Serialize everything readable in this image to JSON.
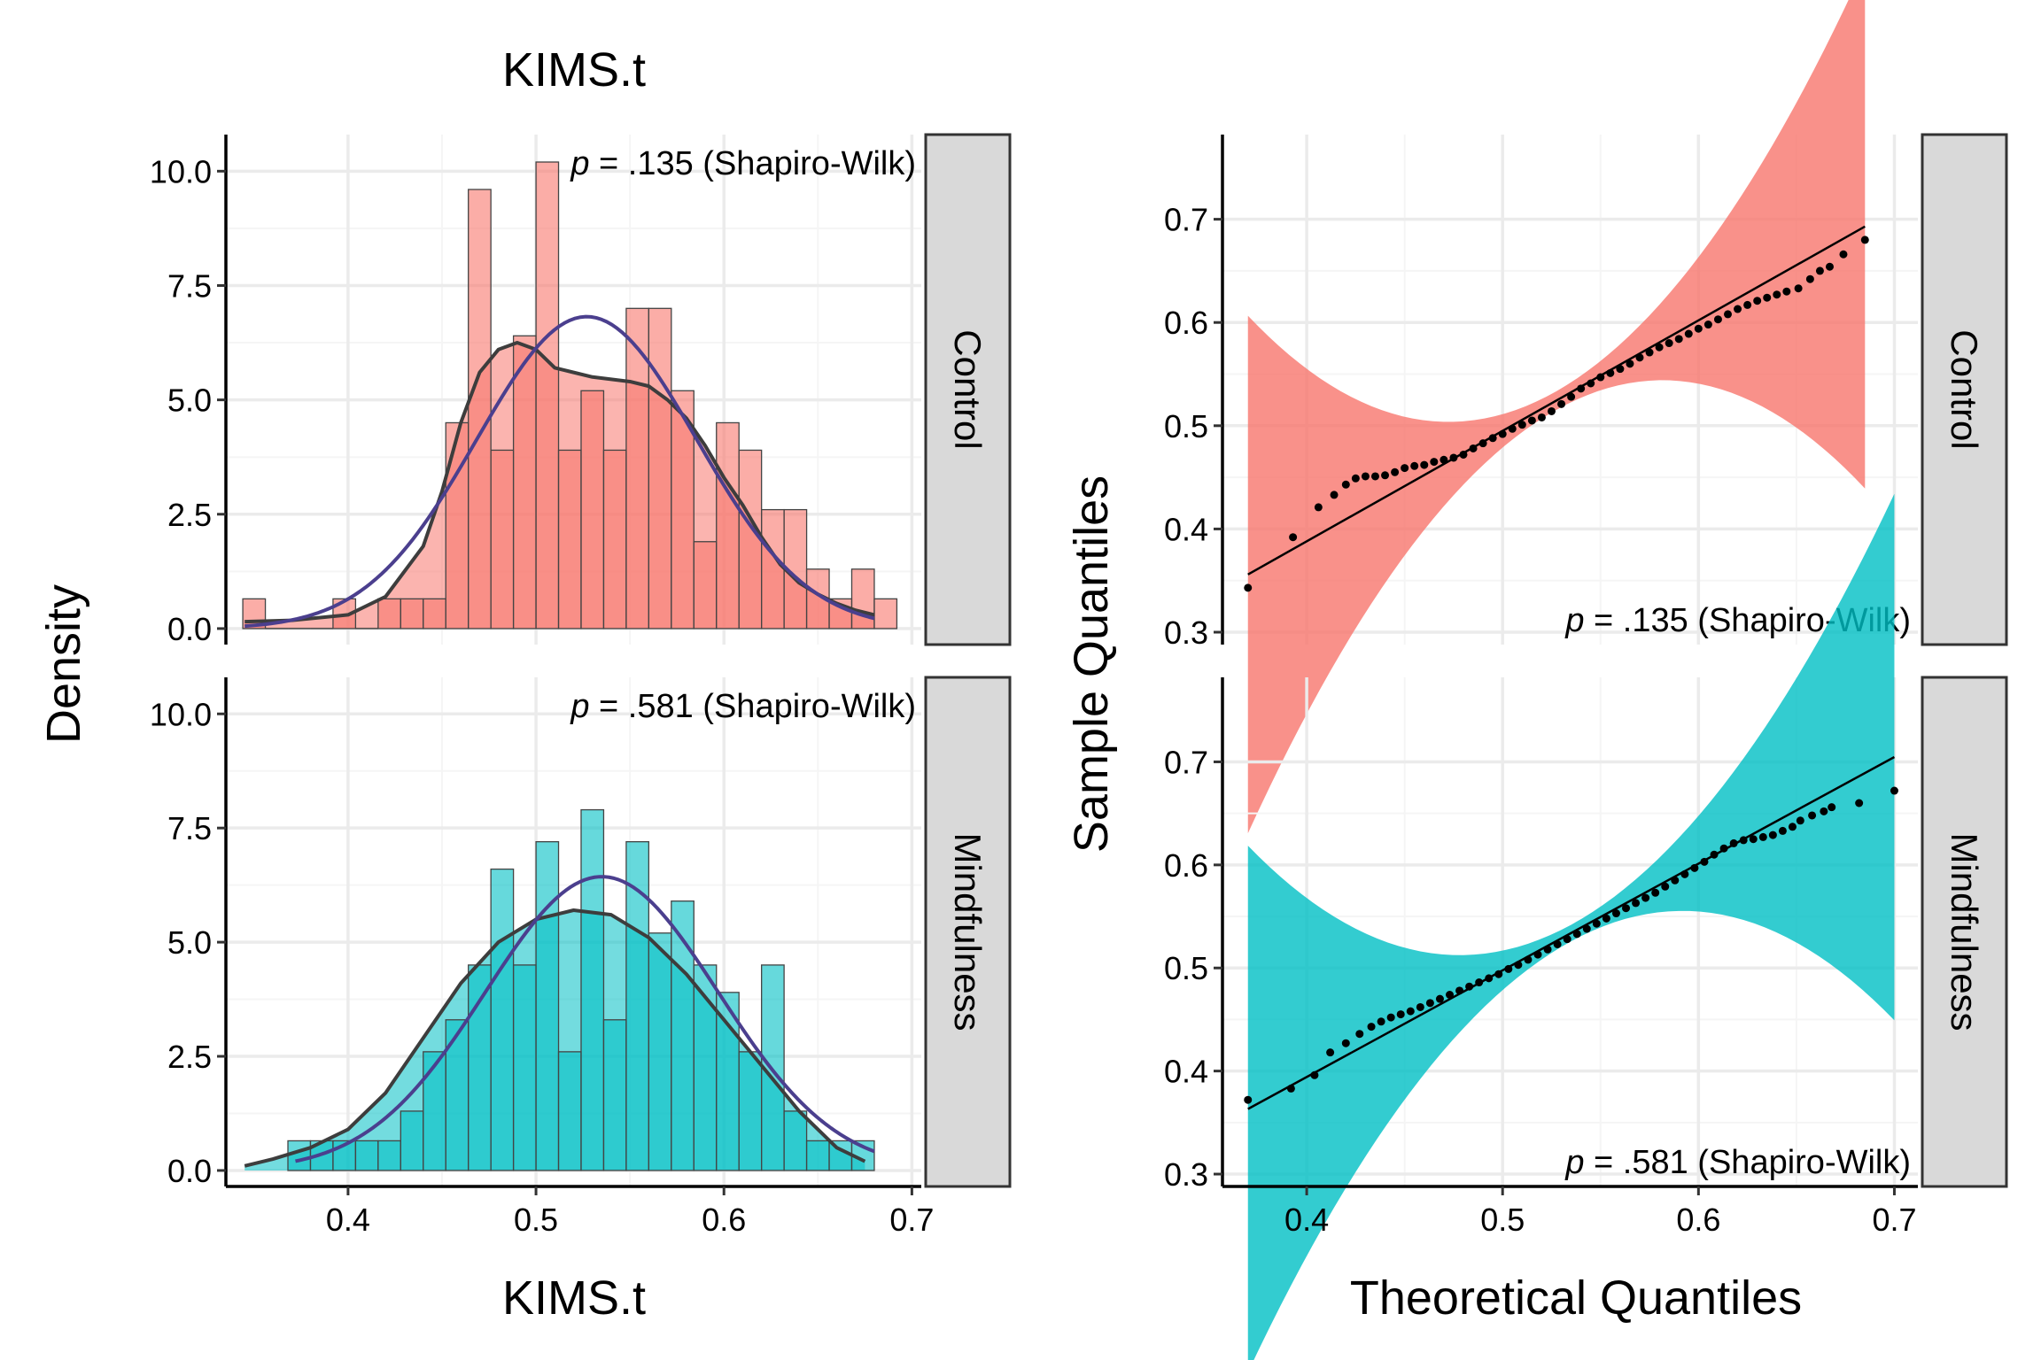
{
  "chart_data": [
    {
      "panel": "left",
      "type": "histogram",
      "title": "KIMS.t",
      "xlabel": "KIMS.t",
      "ylabel": "Density",
      "xlim": [
        0.335,
        0.705
      ],
      "ylim": [
        -0.35,
        10.8
      ],
      "x_ticks": [
        {
          "v": 0.4,
          "label": "0.4"
        },
        {
          "v": 0.5,
          "label": "0.5"
        },
        {
          "v": 0.6,
          "label": "0.6"
        },
        {
          "v": 0.7,
          "label": "0.7"
        }
      ],
      "y_ticks": [
        {
          "v": 0,
          "label": "0.0"
        },
        {
          "v": 2.5,
          "label": "2.5"
        },
        {
          "v": 5,
          "label": "5.0"
        },
        {
          "v": 7.5,
          "label": "7.5"
        },
        {
          "v": 10,
          "label": "10.0"
        }
      ],
      "grid": true,
      "bin_width": 0.012,
      "legend": "none",
      "facets": [
        {
          "strip": "Control",
          "fill": "#F8766D",
          "annotation": {
            "p_symbol": "p",
            "text": " = .135 (Shapiro-Wilk)"
          },
          "bins": [
            {
              "x0": 0.344,
              "h": 0.65
            },
            {
              "x0": 0.356,
              "h": 0.0
            },
            {
              "x0": 0.368,
              "h": 0.0
            },
            {
              "x0": 0.38,
              "h": 0.0
            },
            {
              "x0": 0.392,
              "h": 0.65
            },
            {
              "x0": 0.404,
              "h": 0.0
            },
            {
              "x0": 0.416,
              "h": 0.65
            },
            {
              "x0": 0.428,
              "h": 0.65
            },
            {
              "x0": 0.44,
              "h": 0.65
            },
            {
              "x0": 0.452,
              "h": 4.5
            },
            {
              "x0": 0.464,
              "h": 9.6
            },
            {
              "x0": 0.476,
              "h": 3.9
            },
            {
              "x0": 0.488,
              "h": 6.4
            },
            {
              "x0": 0.5,
              "h": 10.2
            },
            {
              "x0": 0.512,
              "h": 3.9
            },
            {
              "x0": 0.524,
              "h": 5.2
            },
            {
              "x0": 0.536,
              "h": 3.9
            },
            {
              "x0": 0.548,
              "h": 7.0
            },
            {
              "x0": 0.56,
              "h": 7.0
            },
            {
              "x0": 0.572,
              "h": 5.2
            },
            {
              "x0": 0.584,
              "h": 1.9
            },
            {
              "x0": 0.596,
              "h": 4.5
            },
            {
              "x0": 0.608,
              "h": 3.9
            },
            {
              "x0": 0.62,
              "h": 2.6
            },
            {
              "x0": 0.632,
              "h": 2.6
            },
            {
              "x0": 0.644,
              "h": 1.3
            },
            {
              "x0": 0.656,
              "h": 0.65
            },
            {
              "x0": 0.668,
              "h": 1.3
            },
            {
              "x0": 0.68,
              "h": 0.65
            }
          ],
          "density_curve": [
            [
              0.345,
              0.15
            ],
            [
              0.37,
              0.18
            ],
            [
              0.4,
              0.3
            ],
            [
              0.42,
              0.7
            ],
            [
              0.44,
              1.8
            ],
            [
              0.45,
              3.0
            ],
            [
              0.46,
              4.5
            ],
            [
              0.47,
              5.6
            ],
            [
              0.48,
              6.1
            ],
            [
              0.49,
              6.25
            ],
            [
              0.5,
              6.1
            ],
            [
              0.51,
              5.7
            ],
            [
              0.52,
              5.6
            ],
            [
              0.53,
              5.5
            ],
            [
              0.54,
              5.45
            ],
            [
              0.55,
              5.4
            ],
            [
              0.56,
              5.3
            ],
            [
              0.57,
              5.0
            ],
            [
              0.58,
              4.6
            ],
            [
              0.59,
              4.0
            ],
            [
              0.6,
              3.3
            ],
            [
              0.61,
              2.7
            ],
            [
              0.62,
              2.0
            ],
            [
              0.63,
              1.4
            ],
            [
              0.64,
              1.0
            ],
            [
              0.65,
              0.75
            ],
            [
              0.66,
              0.55
            ],
            [
              0.67,
              0.4
            ],
            [
              0.68,
              0.3
            ]
          ],
          "normal_curve": {
            "mean": 0.527,
            "sd": 0.0585
          }
        },
        {
          "strip": "Mindfulness",
          "fill": "#00BFC4",
          "annotation": {
            "p_symbol": "p",
            "text": " = .581 (Shapiro-Wilk)"
          },
          "bins": [
            {
              "x0": 0.368,
              "h": 0.65
            },
            {
              "x0": 0.38,
              "h": 0.65
            },
            {
              "x0": 0.392,
              "h": 0.65
            },
            {
              "x0": 0.404,
              "h": 0.65
            },
            {
              "x0": 0.416,
              "h": 0.65
            },
            {
              "x0": 0.428,
              "h": 1.3
            },
            {
              "x0": 0.44,
              "h": 2.6
            },
            {
              "x0": 0.452,
              "h": 3.3
            },
            {
              "x0": 0.464,
              "h": 4.5
            },
            {
              "x0": 0.476,
              "h": 6.6
            },
            {
              "x0": 0.488,
              "h": 4.5
            },
            {
              "x0": 0.5,
              "h": 7.2
            },
            {
              "x0": 0.512,
              "h": 2.6
            },
            {
              "x0": 0.524,
              "h": 7.9
            },
            {
              "x0": 0.536,
              "h": 3.3
            },
            {
              "x0": 0.548,
              "h": 7.2
            },
            {
              "x0": 0.56,
              "h": 5.2
            },
            {
              "x0": 0.572,
              "h": 5.9
            },
            {
              "x0": 0.584,
              "h": 4.5
            },
            {
              "x0": 0.596,
              "h": 3.9
            },
            {
              "x0": 0.608,
              "h": 2.6
            },
            {
              "x0": 0.62,
              "h": 4.5
            },
            {
              "x0": 0.632,
              "h": 1.3
            },
            {
              "x0": 0.644,
              "h": 0.65
            },
            {
              "x0": 0.656,
              "h": 0.65
            },
            {
              "x0": 0.668,
              "h": 0.65
            }
          ],
          "density_curve": [
            [
              0.345,
              0.1
            ],
            [
              0.36,
              0.25
            ],
            [
              0.38,
              0.5
            ],
            [
              0.4,
              0.9
            ],
            [
              0.42,
              1.7
            ],
            [
              0.44,
              2.9
            ],
            [
              0.46,
              4.1
            ],
            [
              0.48,
              5.0
            ],
            [
              0.5,
              5.5
            ],
            [
              0.52,
              5.7
            ],
            [
              0.54,
              5.6
            ],
            [
              0.56,
              5.1
            ],
            [
              0.58,
              4.3
            ],
            [
              0.6,
              3.3
            ],
            [
              0.62,
              2.3
            ],
            [
              0.64,
              1.3
            ],
            [
              0.66,
              0.5
            ],
            [
              0.675,
              0.2
            ]
          ],
          "normal_curve": {
            "mean": 0.535,
            "sd": 0.062
          }
        }
      ]
    },
    {
      "panel": "right",
      "type": "scatter",
      "subtype": "qq-plot",
      "xlabel": "Theoretical Quantiles",
      "ylabel": "Sample Quantiles",
      "xlim": [
        0.357,
        0.712
      ],
      "ylim": [
        0.288,
        0.782
      ],
      "x_ticks": [
        {
          "v": 0.4,
          "label": "0.4"
        },
        {
          "v": 0.5,
          "label": "0.5"
        },
        {
          "v": 0.6,
          "label": "0.6"
        },
        {
          "v": 0.7,
          "label": "0.7"
        }
      ],
      "y_ticks": [
        {
          "v": 0.3,
          "label": "0.3"
        },
        {
          "v": 0.4,
          "label": "0.4"
        },
        {
          "v": 0.5,
          "label": "0.5"
        },
        {
          "v": 0.6,
          "label": "0.6"
        },
        {
          "v": 0.7,
          "label": "0.7"
        }
      ],
      "grid": true,
      "legend": "none",
      "facets": [
        {
          "strip": "Control",
          "fill": "#F8766D",
          "annotation": {
            "p_symbol": "p",
            "text": " = .135 (Shapiro-Wilk)"
          },
          "x_range": [
            0.37,
            0.685
          ],
          "ref_line": {
            "slope": 1.07,
            "intercept": -0.04
          },
          "band": {
            "se_center": 0.009,
            "se_mean": 0.527,
            "se_scale": 0.102
          },
          "points": [
            [
              0.37,
              0.343
            ],
            [
              0.393,
              0.392
            ],
            [
              0.406,
              0.421
            ],
            [
              0.414,
              0.433
            ],
            [
              0.42,
              0.443
            ],
            [
              0.425,
              0.449
            ],
            [
              0.43,
              0.451
            ],
            [
              0.435,
              0.451
            ],
            [
              0.44,
              0.452
            ],
            [
              0.445,
              0.455
            ],
            [
              0.45,
              0.459
            ],
            [
              0.455,
              0.461
            ],
            [
              0.46,
              0.462
            ],
            [
              0.465,
              0.465
            ],
            [
              0.47,
              0.467
            ],
            [
              0.475,
              0.469
            ],
            [
              0.48,
              0.472
            ],
            [
              0.485,
              0.478
            ],
            [
              0.49,
              0.483
            ],
            [
              0.495,
              0.488
            ],
            [
              0.5,
              0.492
            ],
            [
              0.505,
              0.497
            ],
            [
              0.51,
              0.501
            ],
            [
              0.515,
              0.505
            ],
            [
              0.52,
              0.508
            ],
            [
              0.525,
              0.514
            ],
            [
              0.53,
              0.521
            ],
            [
              0.535,
              0.528
            ],
            [
              0.54,
              0.536
            ],
            [
              0.545,
              0.541
            ],
            [
              0.55,
              0.547
            ],
            [
              0.555,
              0.551
            ],
            [
              0.56,
              0.555
            ],
            [
              0.565,
              0.56
            ],
            [
              0.57,
              0.566
            ],
            [
              0.575,
              0.571
            ],
            [
              0.58,
              0.576
            ],
            [
              0.585,
              0.58
            ],
            [
              0.59,
              0.584
            ],
            [
              0.595,
              0.589
            ],
            [
              0.6,
              0.594
            ],
            [
              0.605,
              0.598
            ],
            [
              0.61,
              0.603
            ],
            [
              0.615,
              0.608
            ],
            [
              0.62,
              0.613
            ],
            [
              0.625,
              0.617
            ],
            [
              0.63,
              0.621
            ],
            [
              0.635,
              0.624
            ],
            [
              0.64,
              0.627
            ],
            [
              0.645,
              0.63
            ],
            [
              0.651,
              0.633
            ],
            [
              0.657,
              0.642
            ],
            [
              0.662,
              0.65
            ],
            [
              0.667,
              0.654
            ],
            [
              0.674,
              0.666
            ],
            [
              0.685,
              0.68
            ]
          ]
        },
        {
          "strip": "Mindfulness",
          "fill": "#00BFC4",
          "annotation": {
            "p_symbol": "p",
            "text": " = .581 (Shapiro-Wilk)"
          },
          "x_range": [
            0.37,
            0.7
          ],
          "ref_line": {
            "slope": 1.035,
            "intercept": -0.0198
          },
          "band": {
            "se_center": 0.008,
            "se_mean": 0.535,
            "se_scale": 0.11
          },
          "points": [
            [
              0.37,
              0.372
            ],
            [
              0.392,
              0.383
            ],
            [
              0.404,
              0.396
            ],
            [
              0.412,
              0.418
            ],
            [
              0.42,
              0.427
            ],
            [
              0.427,
              0.436
            ],
            [
              0.433,
              0.443
            ],
            [
              0.438,
              0.448
            ],
            [
              0.443,
              0.452
            ],
            [
              0.448,
              0.455
            ],
            [
              0.453,
              0.458
            ],
            [
              0.458,
              0.462
            ],
            [
              0.463,
              0.466
            ],
            [
              0.468,
              0.47
            ],
            [
              0.473,
              0.474
            ],
            [
              0.478,
              0.478
            ],
            [
              0.483,
              0.482
            ],
            [
              0.488,
              0.486
            ],
            [
              0.493,
              0.49
            ],
            [
              0.498,
              0.494
            ],
            [
              0.503,
              0.499
            ],
            [
              0.508,
              0.503
            ],
            [
              0.513,
              0.508
            ],
            [
              0.518,
              0.513
            ],
            [
              0.523,
              0.518
            ],
            [
              0.528,
              0.523
            ],
            [
              0.533,
              0.528
            ],
            [
              0.538,
              0.533
            ],
            [
              0.543,
              0.538
            ],
            [
              0.548,
              0.543
            ],
            [
              0.553,
              0.548
            ],
            [
              0.558,
              0.553
            ],
            [
              0.563,
              0.558
            ],
            [
              0.568,
              0.563
            ],
            [
              0.573,
              0.568
            ],
            [
              0.578,
              0.573
            ],
            [
              0.583,
              0.579
            ],
            [
              0.588,
              0.585
            ],
            [
              0.593,
              0.591
            ],
            [
              0.598,
              0.597
            ],
            [
              0.603,
              0.603
            ],
            [
              0.608,
              0.61
            ],
            [
              0.613,
              0.616
            ],
            [
              0.618,
              0.621
            ],
            [
              0.623,
              0.624
            ],
            [
              0.628,
              0.625
            ],
            [
              0.633,
              0.627
            ],
            [
              0.638,
              0.629
            ],
            [
              0.643,
              0.633
            ],
            [
              0.648,
              0.637
            ],
            [
              0.652,
              0.643
            ],
            [
              0.658,
              0.648
            ],
            [
              0.664,
              0.652
            ],
            [
              0.668,
              0.656
            ],
            [
              0.682,
              0.66
            ],
            [
              0.7,
              0.672
            ]
          ]
        }
      ]
    }
  ]
}
